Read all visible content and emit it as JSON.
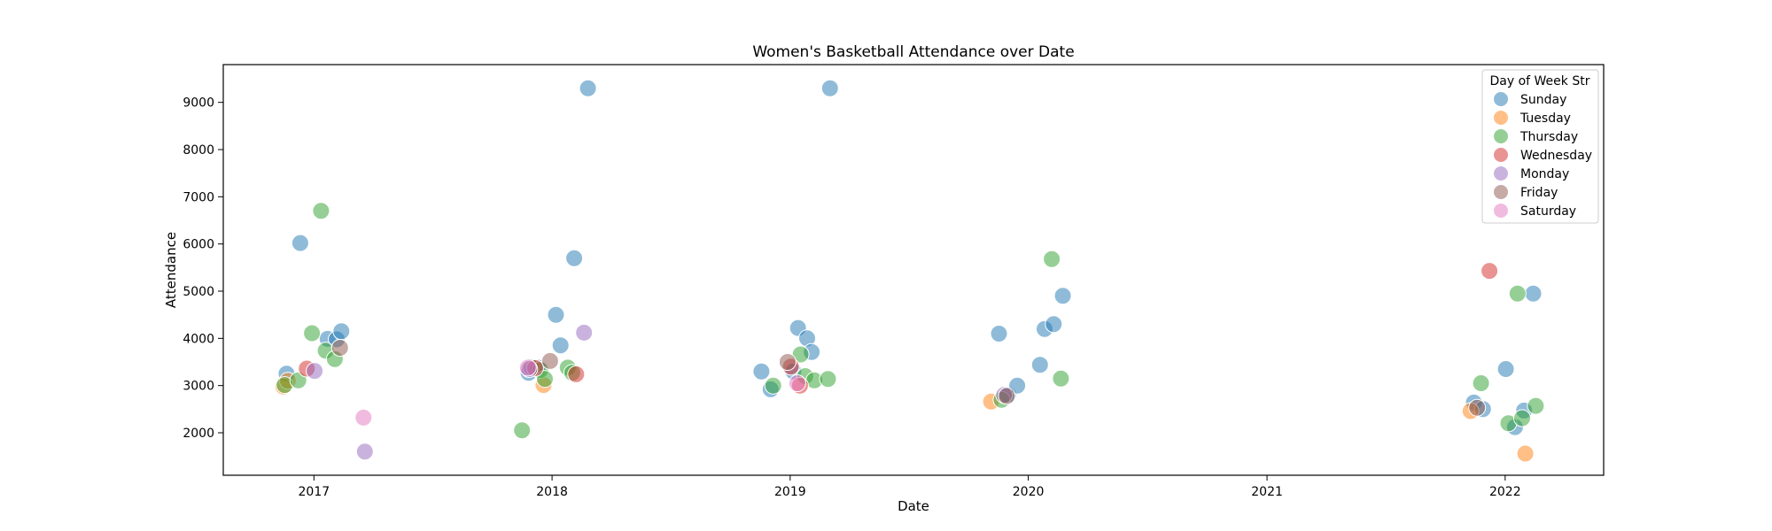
{
  "chart_data": {
    "type": "scatter",
    "title": "Women's Basketball Attendance over Date",
    "xlabel": "Date",
    "ylabel": "Attendance",
    "xlim": [
      "2016-08-15",
      "2022-06-01"
    ],
    "ylim": [
      1100,
      9800
    ],
    "x_ticks": [
      "2017",
      "2018",
      "2019",
      "2020",
      "2021",
      "2022"
    ],
    "y_ticks": [
      2000,
      3000,
      4000,
      5000,
      6000,
      7000,
      8000,
      9000
    ],
    "grid": false,
    "legend": {
      "title": "Day of Week Str",
      "placement": "top-right"
    },
    "series": [
      {
        "name": "Sunday",
        "color": "#1f77b4",
        "points": [
          [
            "2016-11-20",
            3250
          ],
          [
            "2016-12-11",
            6020
          ],
          [
            "2017-01-22",
            3990
          ],
          [
            "2017-02-05",
            3980
          ],
          [
            "2017-02-12",
            4150
          ],
          [
            "2017-11-26",
            3270
          ],
          [
            "2017-12-10",
            3380
          ],
          [
            "2018-01-07",
            4500
          ],
          [
            "2018-01-14",
            3850
          ],
          [
            "2018-02-04",
            5700
          ],
          [
            "2018-02-25",
            9300
          ],
          [
            "2018-11-18",
            3300
          ],
          [
            "2018-12-02",
            2920
          ],
          [
            "2019-01-06",
            3300
          ],
          [
            "2019-01-13",
            4220
          ],
          [
            "2019-01-27",
            4000
          ],
          [
            "2019-02-03",
            3710
          ],
          [
            "2019-03-03",
            9300
          ],
          [
            "2019-11-17",
            4100
          ],
          [
            "2019-12-01",
            2800
          ],
          [
            "2019-12-15",
            3000
          ],
          [
            "2020-01-19",
            3440
          ],
          [
            "2020-01-26",
            4200
          ],
          [
            "2020-02-09",
            4300
          ],
          [
            "2020-02-23",
            4900
          ],
          [
            "2021-11-14",
            2640
          ],
          [
            "2021-11-28",
            2500
          ],
          [
            "2022-01-02",
            3350
          ],
          [
            "2022-01-16",
            2120
          ],
          [
            "2022-01-30",
            2470
          ],
          [
            "2022-02-13",
            4950
          ]
        ]
      },
      {
        "name": "Tuesday",
        "color": "#ff7f0e",
        "points": [
          [
            "2016-11-15",
            2980
          ],
          [
            "2016-11-22",
            3100
          ],
          [
            "2017-12-19",
            3010
          ],
          [
            "2019-11-05",
            2660
          ],
          [
            "2021-11-09",
            2460
          ],
          [
            "2022-02-01",
            1560
          ]
        ]
      },
      {
        "name": "Thursday",
        "color": "#2ca02c",
        "points": [
          [
            "2016-11-17",
            3010
          ],
          [
            "2016-12-08",
            3110
          ],
          [
            "2016-12-29",
            4110
          ],
          [
            "2017-01-12",
            6700
          ],
          [
            "2017-01-19",
            3740
          ],
          [
            "2017-02-02",
            3560
          ],
          [
            "2017-11-16",
            2050
          ],
          [
            "2017-11-30",
            3390
          ],
          [
            "2017-12-14",
            3330
          ],
          [
            "2017-12-21",
            3140
          ],
          [
            "2018-01-25",
            3380
          ],
          [
            "2018-02-01",
            3270
          ],
          [
            "2018-12-06",
            3000
          ],
          [
            "2019-01-17",
            3660
          ],
          [
            "2019-01-24",
            3200
          ],
          [
            "2019-02-07",
            3110
          ],
          [
            "2019-02-28",
            3140
          ],
          [
            "2019-11-21",
            2700
          ],
          [
            "2020-02-06",
            5680
          ],
          [
            "2020-02-20",
            3150
          ],
          [
            "2021-11-25",
            3050
          ],
          [
            "2022-01-06",
            2200
          ],
          [
            "2022-01-20",
            4950
          ],
          [
            "2022-01-27",
            2310
          ],
          [
            "2022-02-17",
            2570
          ]
        ]
      },
      {
        "name": "Wednesday",
        "color": "#d62728",
        "points": [
          [
            "2016-12-21",
            3360
          ],
          [
            "2017-12-06",
            3370
          ],
          [
            "2018-02-07",
            3240
          ],
          [
            "2019-01-02",
            3400
          ],
          [
            "2019-01-16",
            3000
          ],
          [
            "2021-12-08",
            5430
          ]
        ]
      },
      {
        "name": "Monday",
        "color": "#9467bd",
        "points": [
          [
            "2017-01-02",
            3310
          ],
          [
            "2017-03-20",
            1600
          ],
          [
            "2017-11-27",
            3350
          ],
          [
            "2018-02-19",
            4120
          ],
          [
            "2019-11-25",
            2800
          ]
        ]
      },
      {
        "name": "Friday",
        "color": "#8c564b",
        "points": [
          [
            "2017-02-10",
            3800
          ],
          [
            "2017-12-29",
            3520
          ],
          [
            "2018-12-28",
            3500
          ],
          [
            "2019-11-29",
            2780
          ],
          [
            "2021-11-19",
            2530
          ]
        ]
      },
      {
        "name": "Saturday",
        "color": "#e377c2",
        "points": [
          [
            "2017-03-18",
            2320
          ],
          [
            "2017-11-25",
            3380
          ],
          [
            "2019-01-12",
            3050
          ]
        ]
      }
    ]
  }
}
